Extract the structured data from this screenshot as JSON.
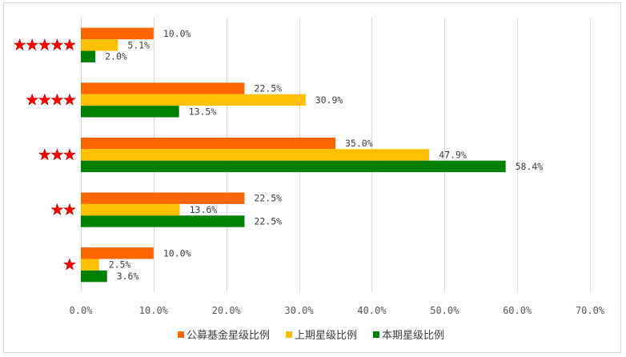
{
  "chart_data": {
    "type": "bar",
    "orientation": "horizontal",
    "categories": [
      "★★★★★",
      "★★★★",
      "★★★",
      "★★",
      "★"
    ],
    "category_star_counts": [
      5,
      4,
      3,
      2,
      1
    ],
    "series": [
      {
        "name": "公募基金星级比例",
        "color": "#ff6600",
        "values": [
          10.0,
          22.5,
          35.0,
          22.5,
          10.0
        ],
        "labels": [
          "10.0%",
          "22.5%",
          "35.0%",
          "22.5%",
          "10.0%"
        ]
      },
      {
        "name": "上期星级比例",
        "color": "#ffc000",
        "values": [
          5.1,
          30.9,
          47.9,
          13.6,
          2.5
        ],
        "labels": [
          "5.1%",
          "30.9%",
          "47.9%",
          "13.6%",
          "2.5%"
        ]
      },
      {
        "name": "本期星级比例",
        "color": "#008000",
        "values": [
          2.0,
          13.5,
          58.4,
          22.5,
          3.6
        ],
        "labels": [
          "2.0%",
          "13.5%",
          "58.4%",
          "22.5%",
          "3.6%"
        ]
      }
    ],
    "xlim": [
      0,
      70
    ],
    "xticks": [
      0,
      10,
      20,
      30,
      40,
      50,
      60,
      70
    ],
    "xtick_labels": [
      "0.0%",
      "10.0%",
      "20.0%",
      "30.0%",
      "40.0%",
      "50.0%",
      "60.0%",
      "70.0%"
    ],
    "grid": true,
    "legend_position": "bottom",
    "title": "",
    "xlabel": "",
    "ylabel": ""
  }
}
